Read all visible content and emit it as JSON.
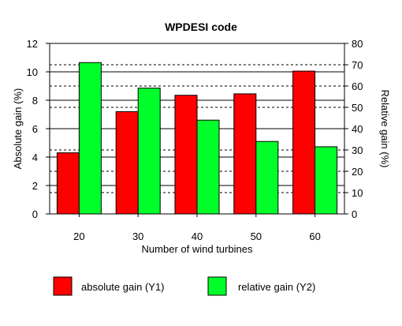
{
  "chart_data": {
    "type": "bar",
    "title": "WPDESI code",
    "xlabel": "Number of wind turbines",
    "ylabel": "Absolute gain (%)",
    "y2label": "Relative gain (%)",
    "categories": [
      "20",
      "30",
      "40",
      "50",
      "60"
    ],
    "ylim": [
      0,
      12
    ],
    "y2lim": [
      0,
      80
    ],
    "yticks": [
      0,
      2,
      4,
      6,
      8,
      10,
      12
    ],
    "y2ticks": [
      0,
      10,
      20,
      30,
      40,
      50,
      60,
      70,
      80
    ],
    "series": [
      {
        "name": "absolute gain (Y1)",
        "axis": "y1",
        "color": "#ff0000",
        "values": [
          4.3,
          7.2,
          8.35,
          8.45,
          10.05
        ]
      },
      {
        "name": "relative gain (Y2)",
        "axis": "y2",
        "color": "#00ff2a",
        "values": [
          71,
          59,
          44,
          34,
          31.5
        ]
      }
    ],
    "grid": {
      "solid_lines_y1": [
        2,
        4,
        6,
        8,
        10
      ],
      "dashed_lines_y2": [
        10,
        20,
        30,
        50,
        60,
        70
      ]
    },
    "legend_position": "bottom"
  }
}
